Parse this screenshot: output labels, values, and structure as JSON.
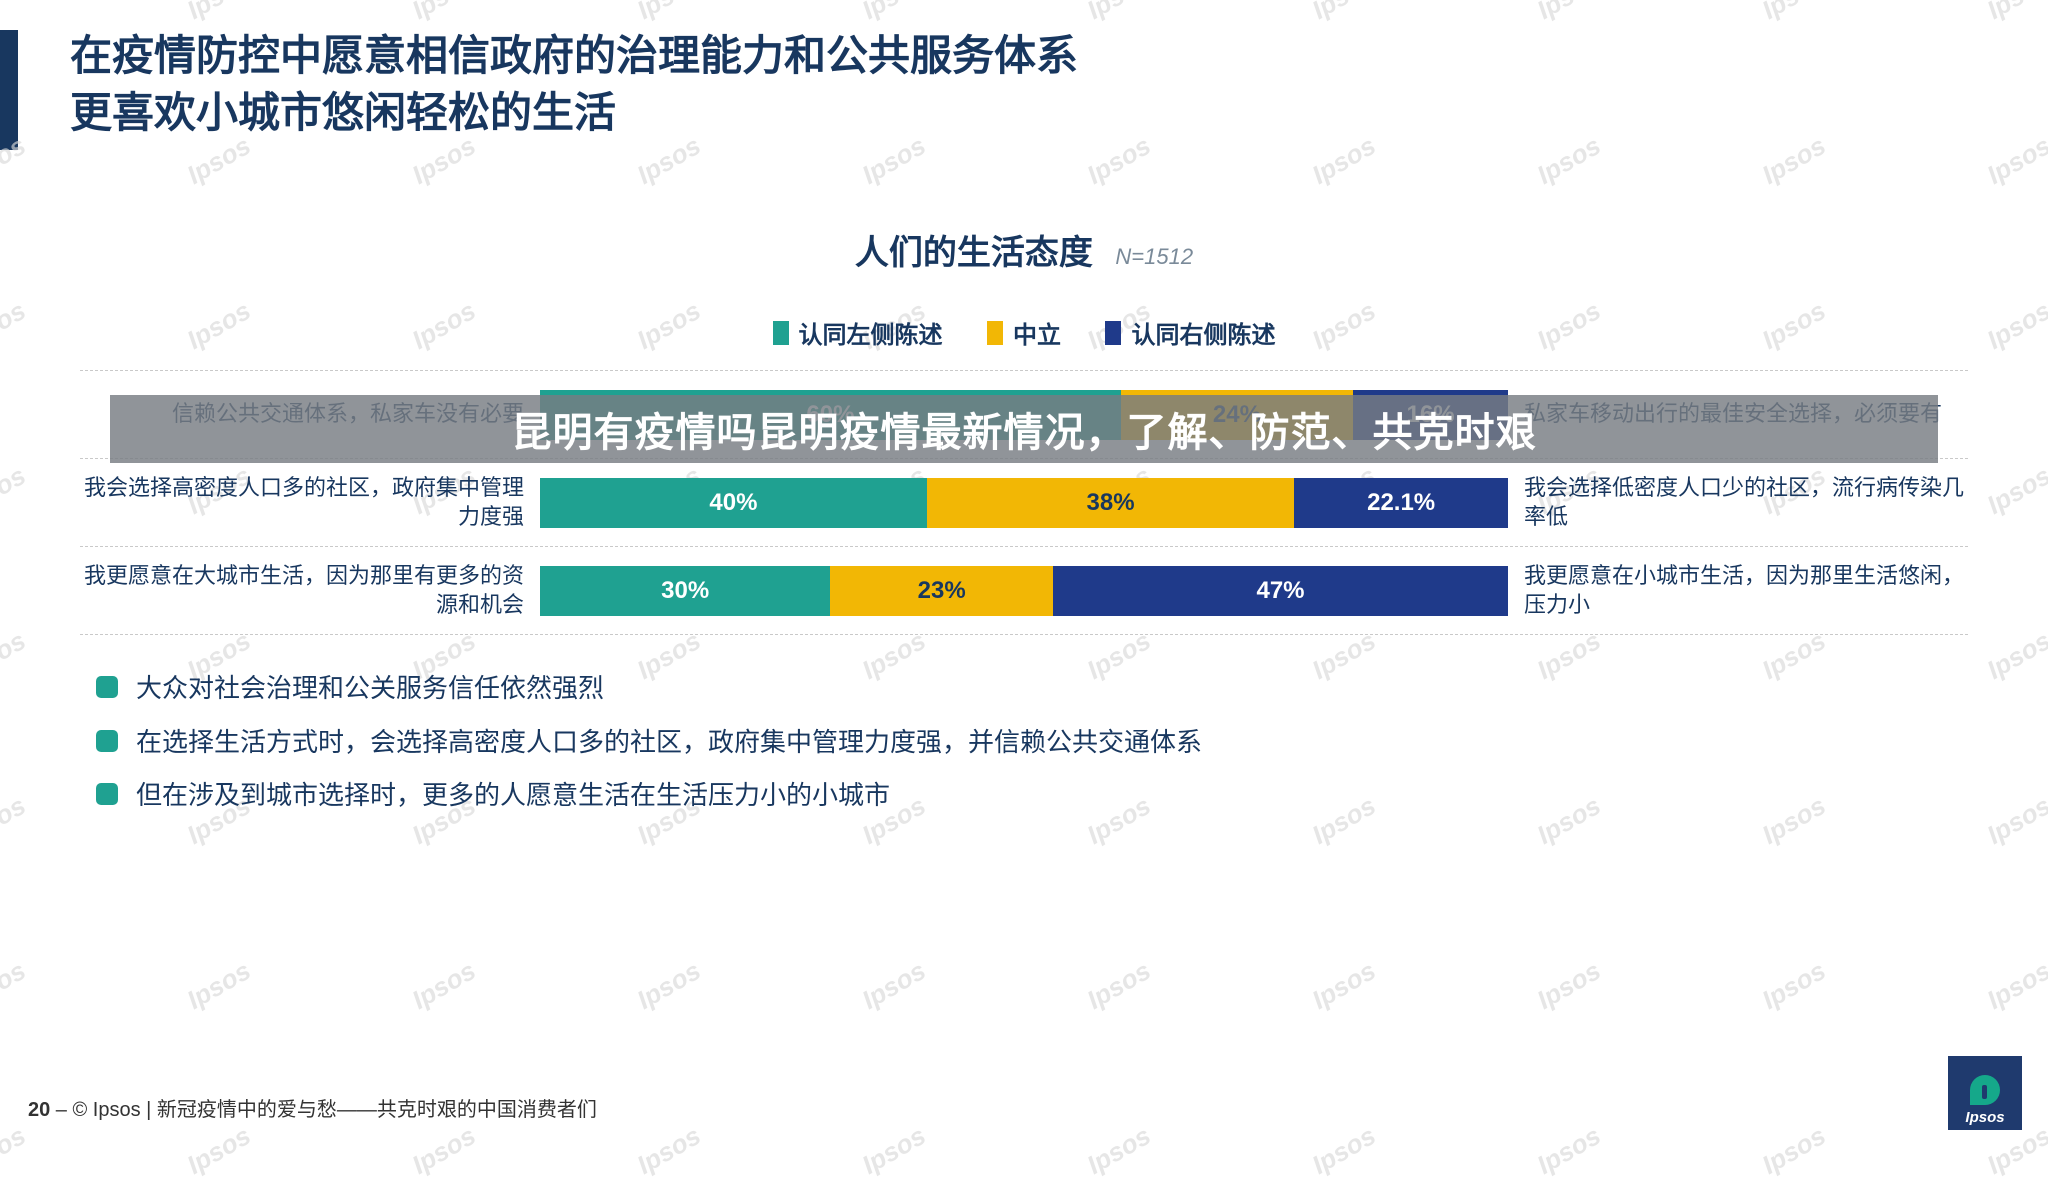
{
  "colors": {
    "accent_dark": "#18375f",
    "teal": "#1fa191",
    "amber": "#f2b705",
    "navy": "#1f3a8a",
    "dash": "#c9c9c9",
    "watermark": "#d9d9d9",
    "overlay_bg": "rgba(120,125,130,0.82)",
    "bullet_marker": "#1fa191"
  },
  "title": {
    "line1": "在疫情防控中愿意相信政府的治理能力和公共服务体系",
    "line2": "更喜欢小城市悠闲轻松的生活"
  },
  "chart": {
    "title": "人们的生活态度",
    "n_label": "N=1512",
    "legend": {
      "left": "认同左侧陈述",
      "mid": "中立",
      "right": "认同右侧陈述"
    },
    "rows": [
      {
        "left_label": "信赖公共交通体系，私家车没有必要",
        "right_label": "私家车移动出行的最佳安全选择，必须要有",
        "left_pct": 60,
        "mid_pct": 24,
        "right_pct": 16,
        "left_val": "60%",
        "mid_val": "24%",
        "right_val": "16%"
      },
      {
        "left_label": "我会选择高密度人口多的社区，政府集中管理力度强",
        "right_label": "我会选择低密度人口少的社区，流行病传染几率低",
        "left_pct": 40,
        "mid_pct": 38,
        "right_pct": 22.1,
        "left_val": "40%",
        "mid_val": "38%",
        "right_val": "22.1%"
      },
      {
        "left_label": "我更愿意在大城市生活，因为那里有更多的资源和机会",
        "right_label": "我更愿意在小城市生活，因为那里生活悠闲，压力小",
        "left_pct": 30,
        "mid_pct": 23,
        "right_pct": 47,
        "left_val": "30%",
        "mid_val": "23%",
        "right_val": "47%"
      }
    ]
  },
  "overlay_text": "昆明有疫情吗昆明疫情最新情况，了解、防范、共克时艰",
  "bullets": [
    "大众对社会治理和公关服务信任依然强烈",
    "在选择生活方式时，会选择高密度人口多的社区，政府集中管理力度强，并信赖公共交通体系",
    "但在涉及到城市选择时，更多的人愿意生活在生活压力小的小城市"
  ],
  "footer": {
    "page": "20",
    "sep": " – ",
    "copyright": "© Ipsos | 新冠疫情中的爱与愁——共克时艰的中国消费者们"
  },
  "watermark_text": "Ipsos",
  "logo_text": "Ipsos"
}
